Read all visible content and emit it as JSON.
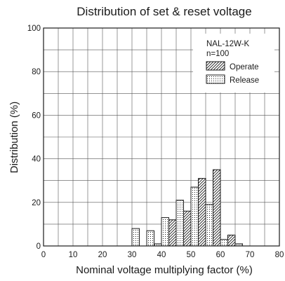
{
  "chart_data": {
    "type": "bar",
    "title": "Distribution of set & reset voltage",
    "xlabel": "Nominal voltage multiplying factor (%)",
    "ylabel": "Distribution (%)",
    "xlim": [
      0,
      80
    ],
    "ylim": [
      0,
      100
    ],
    "x_ticks": [
      "0",
      "10",
      "20",
      "30",
      "40",
      "50",
      "60",
      "70",
      "80"
    ],
    "y_ticks": [
      "0",
      "20",
      "40",
      "60",
      "80",
      "100"
    ],
    "grid": true,
    "legend_position": "top-right",
    "annotation": [
      "NAL-12W-K",
      "n=100"
    ],
    "bin_width": 2.5,
    "series": [
      {
        "name": "Operate",
        "pattern": "hatched",
        "bins": [
          {
            "x": 42.5,
            "value": 12
          },
          {
            "x": 47.5,
            "value": 16
          },
          {
            "x": 52.5,
            "value": 31
          },
          {
            "x": 57.5,
            "value": 35
          },
          {
            "x": 62.5,
            "value": 5
          }
        ]
      },
      {
        "name": "Release",
        "pattern": "dotted",
        "bins": [
          {
            "x": 30,
            "value": 8
          },
          {
            "x": 35,
            "value": 7
          },
          {
            "x": 37.5,
            "value": 1
          },
          {
            "x": 40,
            "value": 13
          },
          {
            "x": 45,
            "value": 21
          },
          {
            "x": 50,
            "value": 27
          },
          {
            "x": 55,
            "value": 19
          },
          {
            "x": 60,
            "value": 3
          },
          {
            "x": 65,
            "value": 1
          }
        ]
      }
    ]
  }
}
